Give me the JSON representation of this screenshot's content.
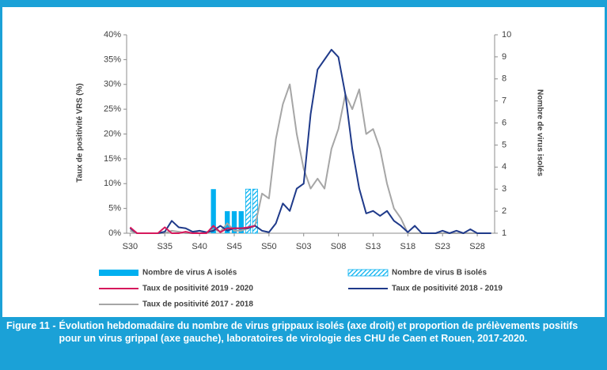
{
  "chart_data": {
    "type": "combo",
    "y_label": "Taux de positivité VRS (%)",
    "y2_label": "Nombre de virus isolés",
    "figure_label": "Figure 11 -",
    "caption": "Évolution hebdomadaire du nombre de virus grippaux isolés (axe droit) et proportion de prélèvements positifs pour un virus grippal (axe gauche), laboratoires de virologie des CHU de Caen et Rouen, 2017-2020.",
    "categories": [
      "S30",
      null,
      null,
      null,
      null,
      "S35",
      null,
      null,
      null,
      null,
      "S40",
      null,
      null,
      null,
      null,
      "S45",
      null,
      null,
      null,
      null,
      "S50",
      null,
      null,
      null,
      null,
      "S03",
      null,
      null,
      null,
      null,
      "S08",
      null,
      null,
      null,
      null,
      "S13",
      null,
      null,
      null,
      null,
      "S18",
      null,
      null,
      null,
      null,
      "S23",
      null,
      null,
      null,
      null,
      "S28",
      null,
      null
    ],
    "ylim": [
      0,
      40
    ],
    "yticks": [
      {
        "value": 0,
        "label": "0%"
      },
      {
        "value": 5,
        "label": "5%"
      },
      {
        "value": 10,
        "label": "10%"
      },
      {
        "value": 15,
        "label": "15%"
      },
      {
        "value": 20,
        "label": "20%"
      },
      {
        "value": 25,
        "label": "25%"
      },
      {
        "value": 30,
        "label": "30%"
      },
      {
        "value": 35,
        "label": "35%"
      },
      {
        "value": 40,
        "label": "40%"
      }
    ],
    "y2lim": [
      1,
      10
    ],
    "y2ticks": [
      1,
      2,
      3,
      4,
      5,
      6,
      7,
      8,
      9,
      10
    ],
    "series": [
      {
        "name": "Nombre de virus A isolés",
        "type": "bar",
        "axis": "y2",
        "color": "#00b0f0",
        "hatched": false,
        "values": [
          null,
          null,
          null,
          null,
          null,
          null,
          null,
          null,
          null,
          null,
          null,
          null,
          3,
          null,
          2,
          2,
          2,
          null,
          null,
          null,
          null,
          null,
          null,
          null,
          null,
          null,
          null,
          null,
          null,
          null,
          null,
          null,
          null,
          null,
          null,
          null,
          null,
          null,
          null,
          null,
          null,
          null,
          null,
          null,
          null,
          null,
          null,
          null,
          null,
          null,
          null,
          null,
          null
        ]
      },
      {
        "name": "Nombre de virus B isolés",
        "type": "bar",
        "axis": "y2",
        "color": "#00b0f0",
        "hatched": true,
        "values": [
          null,
          null,
          null,
          null,
          null,
          null,
          null,
          null,
          null,
          null,
          null,
          null,
          null,
          null,
          null,
          null,
          null,
          3,
          3,
          null,
          null,
          null,
          null,
          null,
          null,
          null,
          null,
          null,
          null,
          null,
          null,
          null,
          null,
          null,
          null,
          null,
          null,
          null,
          null,
          null,
          null,
          null,
          null,
          null,
          null,
          null,
          null,
          null,
          null,
          null,
          null,
          null,
          null
        ]
      },
      {
        "name": "Taux de positivité 2019 - 2020",
        "type": "line",
        "color": "#d6185c",
        "values": [
          1.2,
          0,
          0,
          0,
          0,
          1.2,
          0,
          0,
          0.3,
          0,
          0,
          0,
          1.5,
          0.2,
          1,
          1,
          1,
          1.2,
          1.5,
          null,
          null,
          null,
          null,
          null,
          null,
          null,
          null,
          null,
          null,
          null,
          null,
          null,
          null,
          null,
          null,
          null,
          null,
          null,
          null,
          null,
          null,
          null,
          null,
          null,
          null,
          null,
          null,
          null,
          null,
          null,
          null,
          null,
          null
        ]
      },
      {
        "name": "Taux de positivité 2018 - 2019",
        "type": "line",
        "color": "#1f3a8a",
        "values": [
          1,
          0,
          0,
          0,
          0,
          0.3,
          2.5,
          1.2,
          1,
          0.3,
          0.5,
          0.2,
          0.5,
          1.5,
          0.5,
          1,
          1,
          1,
          1.5,
          0.5,
          0.2,
          2,
          6,
          4.5,
          9,
          10,
          24,
          33,
          35,
          37,
          35.5,
          28,
          17,
          9,
          4,
          4.5,
          3.5,
          4.5,
          2.5,
          1.5,
          0.2,
          1.5,
          0,
          0,
          0,
          0.5,
          0,
          0.5,
          0,
          0.8,
          0,
          0,
          0
        ]
      },
      {
        "name": "Taux de positivité 2017 - 2018",
        "type": "line",
        "color": "#a6a6a6",
        "values": [
          0.5,
          0,
          0,
          0,
          0,
          0,
          0.5,
          0.3,
          0,
          0,
          0.5,
          0,
          0.8,
          0.3,
          2,
          0.5,
          0.5,
          1,
          1.5,
          8,
          7,
          19,
          26,
          30,
          20,
          13,
          9,
          11,
          9,
          17,
          21,
          28,
          25,
          29,
          20,
          21,
          17,
          10,
          5,
          3,
          0,
          0,
          0,
          0,
          0,
          0,
          0,
          0,
          0,
          0,
          0,
          0,
          0
        ]
      }
    ]
  }
}
